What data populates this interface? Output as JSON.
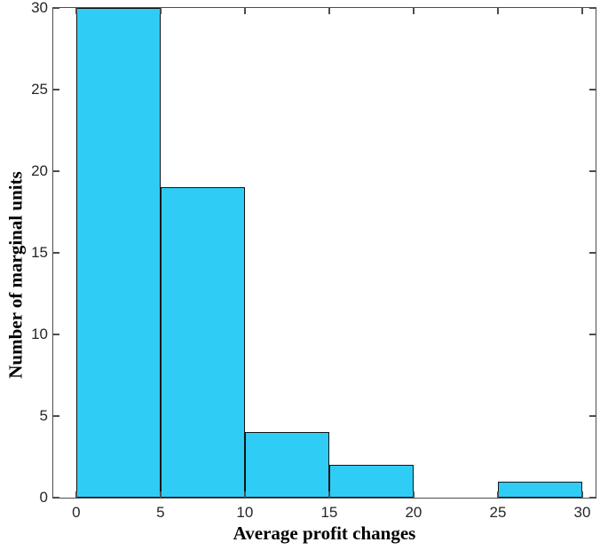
{
  "figure": {
    "background": "#ffffff"
  },
  "chart_data": {
    "type": "bar",
    "subtype": "histogram",
    "title": "",
    "xlabel": "Average profit changes",
    "ylabel": "Number of marginal units",
    "bin_edges": [
      0,
      5,
      10,
      15,
      20,
      25,
      30
    ],
    "values": [
      30,
      19,
      4,
      2,
      0,
      1
    ],
    "xticks": [
      0,
      5,
      10,
      15,
      20,
      25,
      30
    ],
    "xtick_labels": [
      "0",
      "5",
      "10",
      "15",
      "20",
      "25",
      "30"
    ],
    "yticks": [
      0,
      5,
      10,
      15,
      20,
      25,
      30
    ],
    "ytick_labels": [
      "0",
      "5",
      "10",
      "15",
      "20",
      "25",
      "30"
    ],
    "xlim": [
      -1.36,
      30.79
    ],
    "ylim": [
      0,
      30
    ],
    "grid": false,
    "legend": null,
    "box": true,
    "tick_direction": "in",
    "bar_fill": "#2fccf5",
    "bar_edge": "#141414",
    "axis_color": "#4d4d4d",
    "tick_label_color": "#262626",
    "label_color": "#000000"
  }
}
